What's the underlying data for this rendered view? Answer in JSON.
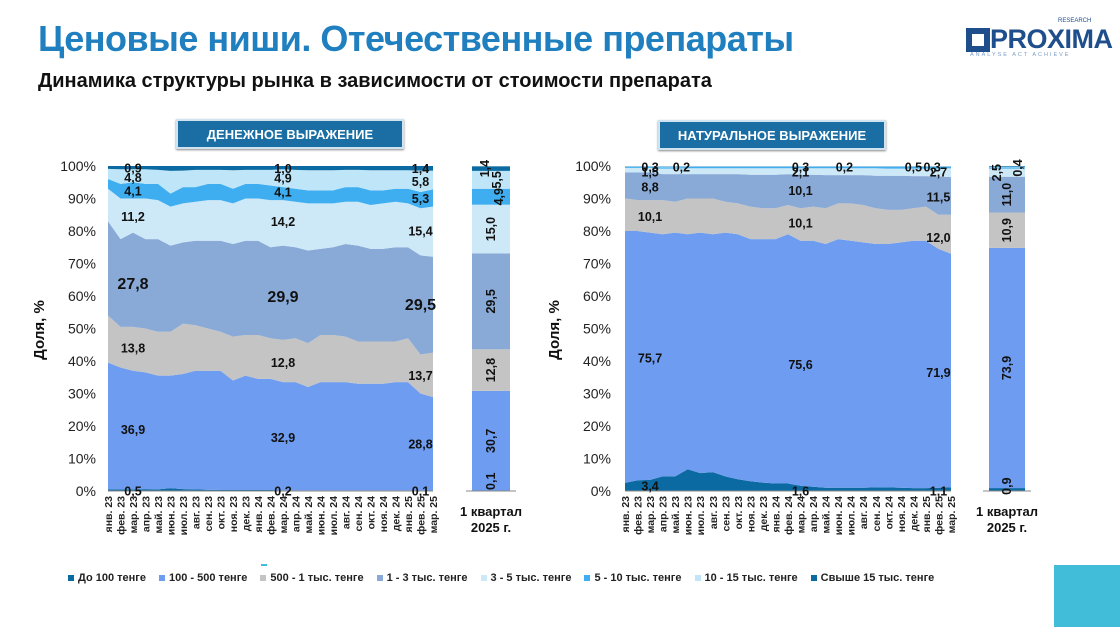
{
  "header": {
    "title": "Ценовые ниши. Отечественные препараты",
    "subtitle": "Динамика структуры рынка в зависимости от стоимости препарата",
    "logo_text": "PROXIMA",
    "logo_small": "RESEARCH",
    "logo_tagline": "ANALYSE   ACT   ACHIEVE"
  },
  "legend": [
    {
      "label": "До 100 тенге",
      "color": "#0b6aa2"
    },
    {
      "label": "100 - 500 тенге",
      "color": "#6d9cf0"
    },
    {
      "label": "500 - 1 тыс. тенге",
      "color": "#c4c4c4"
    },
    {
      "label": "1 - 3 тыс. тенге",
      "color": "#89a9d6"
    },
    {
      "label": "3 - 5 тыс. тенге",
      "color": "#cde8f7"
    },
    {
      "label": "5 - 10 тыс. тенге",
      "color": "#3eaef0"
    },
    {
      "label": "10 - 15 тыс. тенге",
      "color": "#bfe6f8"
    },
    {
      "label": "Свыше 15 тыс. тенге",
      "color": "#0b6aa2"
    }
  ],
  "chart_data": [
    {
      "type": "area",
      "badge": "ДЕНЕЖНОЕ ВЫРАЖЕНИЕ",
      "ylabel": "Доля, %",
      "ylim": [
        0,
        100
      ],
      "yticks": [
        "0%",
        "10%",
        "20%",
        "30%",
        "40%",
        "50%",
        "60%",
        "70%",
        "80%",
        "90%",
        "100%"
      ],
      "categories": [
        "янв. 23",
        "фев. 23",
        "мар. 23",
        "апр. 23",
        "май. 23",
        "июн. 23",
        "июл. 23",
        "авг. 23",
        "сен. 23",
        "окт. 23",
        "ноя. 23",
        "дек. 23",
        "янв. 24",
        "фев. 24",
        "мар. 24",
        "апр. 24",
        "май. 24",
        "июн. 24",
        "июл. 24",
        "авг. 24",
        "сен. 24",
        "окт. 24",
        "ноя. 24",
        "дек. 24",
        "янв. 25",
        "фев. 25",
        "мар. 25"
      ],
      "series_names": [
        "До 100 тенге",
        "100 - 500 тенге",
        "500 - 1 тыс. тенге",
        "1 - 3 тыс. тенге",
        "3 - 5 тыс. тенге",
        "5 - 10 тыс. тенге",
        "10 - 15 тыс. тенге",
        "Свыше 15 тыс. тенге"
      ],
      "boundaries": [
        [
          0.5,
          0.5,
          0.5,
          0.6,
          0.5,
          0.9,
          0.6,
          0.5,
          0.4,
          0.3,
          0.3,
          0.3,
          0.3,
          0.3,
          0.2,
          0.2,
          0.2,
          0.2,
          0.2,
          0.2,
          0.2,
          0.2,
          0.2,
          0.2,
          0.2,
          0.2,
          0.1
        ],
        [
          39.5,
          38,
          37,
          36.5,
          35.5,
          35.5,
          36,
          37,
          37,
          37,
          34,
          35.5,
          34.5,
          34.5,
          33.5,
          33.5,
          32,
          33.5,
          33.5,
          33.5,
          33,
          33,
          33,
          33.5,
          33.5,
          30,
          28.9
        ],
        [
          54,
          50.5,
          50.5,
          50,
          49,
          49,
          51.5,
          51,
          50,
          49,
          47.5,
          48,
          48,
          47,
          46.5,
          47,
          45.5,
          48,
          48,
          47.5,
          46,
          46,
          46,
          46,
          47,
          42,
          42.6
        ],
        [
          83,
          77.5,
          79.5,
          77.5,
          77.5,
          75.5,
          76.5,
          77,
          77,
          77,
          76,
          77,
          77,
          75,
          75.5,
          75,
          74,
          74.5,
          75,
          76,
          75.5,
          74.5,
          74.5,
          75,
          75,
          72.5,
          72.1
        ],
        [
          93,
          90,
          90,
          90,
          89.5,
          87.5,
          88.5,
          89,
          89.5,
          89.5,
          88.5,
          90,
          90,
          89.5,
          89.5,
          89,
          88.5,
          88.5,
          88.5,
          89,
          89,
          88,
          88.5,
          89,
          88.5,
          87,
          87.5
        ],
        [
          96,
          94.5,
          95,
          94.5,
          94.5,
          91.5,
          93.5,
          93.5,
          94.5,
          94.5,
          93,
          94.5,
          94.5,
          94,
          93.5,
          93,
          92.5,
          92.5,
          92.5,
          93.5,
          93.5,
          92.5,
          92.5,
          93,
          93,
          92,
          92.8
        ],
        [
          99.1,
          99,
          99,
          99,
          98.8,
          98.5,
          98.6,
          98.8,
          98.8,
          98.8,
          98.7,
          98.8,
          98.8,
          98.8,
          99,
          98.8,
          98.7,
          98.7,
          98.7,
          98.8,
          98.8,
          98.7,
          98.7,
          98.7,
          98.7,
          98.6,
          98.6
        ],
        [
          100,
          100,
          100,
          100,
          100,
          100,
          100,
          100,
          100,
          100,
          100,
          100,
          100,
          100,
          100,
          100,
          100,
          100,
          100,
          100,
          100,
          100,
          100,
          100,
          100,
          100,
          100
        ]
      ],
      "labels": [
        {
          "col": 2,
          "text": "0,5",
          "y": 0
        },
        {
          "col": 2,
          "text": "36,9",
          "y": 19
        },
        {
          "col": 2,
          "text": "13,8",
          "y": 44
        },
        {
          "col": 2,
          "text": "27,8",
          "y": 64,
          "big": true
        },
        {
          "col": 2,
          "text": "11,2",
          "y": 84.5
        },
        {
          "col": 2,
          "text": "4,1",
          "y": 92.3
        },
        {
          "col": 2,
          "text": "4,8",
          "y": 96.5
        },
        {
          "col": 2,
          "text": "0,9",
          "y": 99.4
        },
        {
          "col": 14,
          "text": "0,2",
          "y": 0
        },
        {
          "col": 14,
          "text": "32,9",
          "y": 16.5
        },
        {
          "col": 14,
          "text": "12,8",
          "y": 39.5
        },
        {
          "col": 14,
          "text": "29,9",
          "y": 60,
          "big": true
        },
        {
          "col": 14,
          "text": "14,2",
          "y": 83
        },
        {
          "col": 14,
          "text": "4,1",
          "y": 92
        },
        {
          "col": 14,
          "text": "4,9",
          "y": 96.3
        },
        {
          "col": 14,
          "text": "1,0",
          "y": 99.3
        },
        {
          "col": 25,
          "text": "0,1",
          "y": 0
        },
        {
          "col": 25,
          "text": "28,8",
          "y": 14.5
        },
        {
          "col": 25,
          "text": "13,7",
          "y": 35.5
        },
        {
          "col": 25,
          "text": "29,5",
          "y": 57.5,
          "big": true
        },
        {
          "col": 25,
          "text": "15,4",
          "y": 80
        },
        {
          "col": 25,
          "text": "5,3",
          "y": 90
        },
        {
          "col": 25,
          "text": "5,8",
          "y": 95.2
        },
        {
          "col": 25,
          "text": "1,4",
          "y": 99.3
        }
      ],
      "quarter": {
        "label_line1": "1 квартал",
        "label_line2": "2025 г.",
        "values": [
          0.1,
          30.7,
          12.8,
          29.5,
          15.0,
          4.9,
          5.5,
          1.4
        ],
        "text": [
          "0,1",
          "30,7",
          "12,8",
          "29,5",
          "15,0",
          "4,9",
          "5,5",
          "1,4"
        ]
      }
    },
    {
      "type": "area",
      "badge": "НАТУРАЛЬНОЕ ВЫРАЖЕНИЕ",
      "ylabel": "Доля, %",
      "ylim": [
        0,
        100
      ],
      "yticks": [
        "0%",
        "10%",
        "20%",
        "30%",
        "40%",
        "50%",
        "60%",
        "70%",
        "80%",
        "90%",
        "100%"
      ],
      "categories": [
        "янв. 23",
        "фев. 23",
        "мар. 23",
        "апр. 23",
        "май. 23",
        "июн. 23",
        "июл. 23",
        "авг. 23",
        "сен. 23",
        "окт. 23",
        "ноя. 23",
        "дек. 23",
        "янв. 24",
        "фев. 24",
        "мар. 24",
        "апр. 24",
        "май. 24",
        "июн. 24",
        "июл. 24",
        "авг. 24",
        "сен. 24",
        "окт. 24",
        "ноя. 24",
        "дек. 24",
        "янв. 25",
        "фев. 25",
        "мар. 25"
      ],
      "series_names": [
        "До 100 тенге",
        "100 - 500 тенге",
        "500 - 1 тыс. тенге",
        "1 - 3 тыс. тенге",
        "3 - 5 тыс. тенге",
        "5 - 10 тыс. тенге",
        "10 - 15 тыс. тенге",
        "Свыше 15 тыс. тенге"
      ],
      "boundaries": [
        [
          2.5,
          3.3,
          3.4,
          4.5,
          4.5,
          6.7,
          5.5,
          5.8,
          4.5,
          3.6,
          3,
          2.6,
          2.3,
          2.3,
          1.6,
          1.3,
          1,
          1,
          1,
          1,
          1.1,
          1.1,
          1,
          0.9,
          0.9,
          1,
          1.1
        ],
        [
          80,
          80,
          79.5,
          79,
          79.5,
          79,
          79.5,
          79,
          79.5,
          79,
          77.5,
          77.5,
          77.5,
          79,
          77,
          77,
          76,
          77.5,
          77,
          76.5,
          76,
          76,
          76.5,
          77,
          77,
          74.5,
          73
        ],
        [
          90,
          89.5,
          89.5,
          89.5,
          89,
          90,
          90,
          90,
          89,
          88.5,
          87.5,
          87,
          87,
          88,
          87,
          87.5,
          87,
          88.5,
          88.5,
          88,
          87,
          86.5,
          86.5,
          87,
          87.5,
          85,
          85
        ],
        [
          98,
          98,
          98,
          97.5,
          97.5,
          97.5,
          97.5,
          97.5,
          97.5,
          97.5,
          97.3,
          97.3,
          97.3,
          97.5,
          97.3,
          97.3,
          97.2,
          97.2,
          97.2,
          97.2,
          97,
          97,
          97,
          96.9,
          96.9,
          96.8,
          96.6
        ],
        [
          99.4,
          99.4,
          99.4,
          99.2,
          99.2,
          99.3,
          99.3,
          99.3,
          99.3,
          99.3,
          99.3,
          99.3,
          99.3,
          99.3,
          99.3,
          99.3,
          99.3,
          99.3,
          99.3,
          99.3,
          99.3,
          99.2,
          99.2,
          99.2,
          99.2,
          99.2,
          99.3
        ],
        [
          99.7,
          99.7,
          99.7,
          99.6,
          99.6,
          99.7,
          99.7,
          99.7,
          99.7,
          99.7,
          99.7,
          99.7,
          99.7,
          99.7,
          99.7,
          99.7,
          99.7,
          99.7,
          99.7,
          99.7,
          99.7,
          99.7,
          99.7,
          99.7,
          99.7,
          99.7,
          99.7
        ],
        [
          99.9,
          99.9,
          99.9,
          99.9,
          99.9,
          99.9,
          99.9,
          99.9,
          99.9,
          99.9,
          99.9,
          99.9,
          99.9,
          99.9,
          99.9,
          99.9,
          99.9,
          99.9,
          99.9,
          99.9,
          99.9,
          99.9,
          99.9,
          99.9,
          99.9,
          99.9,
          99.9
        ],
        [
          100,
          100,
          100,
          100,
          100,
          100,
          100,
          100,
          100,
          100,
          100,
          100,
          100,
          100,
          100,
          100,
          100,
          100,
          100,
          100,
          100,
          100,
          100,
          100,
          100,
          100,
          100
        ]
      ],
      "labels": [
        {
          "col": 2,
          "text": "3,4",
          "y": 1.5
        },
        {
          "col": 2,
          "text": "75,7",
          "y": 41
        },
        {
          "col": 2,
          "text": "10,1",
          "y": 84.5
        },
        {
          "col": 2,
          "text": "8,8",
          "y": 93.5
        },
        {
          "col": 2,
          "text": "1,5",
          "y": 98.2
        },
        {
          "col": 2,
          "text": "0,3",
          "y": 99.7
        },
        {
          "col": 4.5,
          "text": "0,2",
          "y": 99.7
        },
        {
          "col": 14,
          "text": "1,6",
          "y": 0
        },
        {
          "col": 14,
          "text": "75,6",
          "y": 39
        },
        {
          "col": 14,
          "text": "10,1",
          "y": 82.5
        },
        {
          "col": 14,
          "text": "10,1",
          "y": 92.5
        },
        {
          "col": 14,
          "text": "2,1",
          "y": 98.2
        },
        {
          "col": 14,
          "text": "0,3",
          "y": 99.7
        },
        {
          "col": 17.5,
          "text": "0,2",
          "y": 99.7
        },
        {
          "col": 25,
          "text": "1,1",
          "y": 0
        },
        {
          "col": 25,
          "text": "71,9",
          "y": 36.5
        },
        {
          "col": 25,
          "text": "12,0",
          "y": 78
        },
        {
          "col": 25,
          "text": "11,5",
          "y": 90.5
        },
        {
          "col": 25,
          "text": "2,7",
          "y": 98.2
        },
        {
          "col": 23,
          "text": "0,5",
          "y": 99.7
        },
        {
          "col": 24.5,
          "text": "0,3",
          "y": 99.7
        }
      ],
      "quarter": {
        "label_line1": "1 квартал",
        "label_line2": "2025 г.",
        "values": [
          0.9,
          73.9,
          10.9,
          11.0,
          2.5,
          0.4,
          0.2,
          0.2
        ],
        "text": [
          "0,9",
          "73,9",
          "10,9",
          "11,0",
          "2,5",
          "0,4",
          "",
          ""
        ]
      }
    }
  ]
}
